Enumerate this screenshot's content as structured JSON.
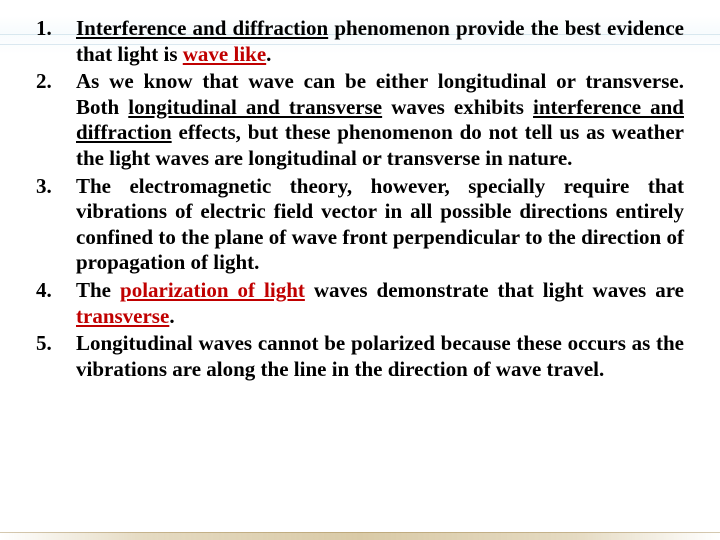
{
  "slide": {
    "background_color": "#ffffff",
    "font_family": "Georgia, Times New Roman, serif",
    "font_size_pt": 16,
    "line_height": 1.22,
    "text_color": "#000000",
    "highlight_color": "#c00000",
    "text_align": "justify",
    "list_number_weight": "bold",
    "bottom_accent_color": "#b49650",
    "items": [
      {
        "segments": [
          {
            "text": "Interference and diffraction",
            "underline": true
          },
          {
            "text": " phenomenon provide the best evidence that light is "
          },
          {
            "text": "wave like",
            "underline": true,
            "color": "#c00000"
          },
          {
            "text": "."
          }
        ]
      },
      {
        "segments": [
          {
            "text": "As we know that wave can be either longitudinal or transverse. Both "
          },
          {
            "text": "longitudinal and transverse",
            "underline": true
          },
          {
            "text": " waves exhibits "
          },
          {
            "text": "interference and diffraction",
            "underline": true
          },
          {
            "text": " effects, but these phenomenon do not tell us as weather the light waves are longitudinal or transverse in nature."
          }
        ]
      },
      {
        "segments": [
          {
            "text": "The electromagnetic theory, however, specially require that vibrations of electric field vector in all possible directions entirely confined to the plane of wave front perpendicular to the direction of propagation of light."
          }
        ]
      },
      {
        "segments": [
          {
            "text": "The "
          },
          {
            "text": "polarization of light",
            "underline": true,
            "color": "#c00000"
          },
          {
            "text": " waves demonstrate that light waves are "
          },
          {
            "text": "transverse",
            "underline": true,
            "color": "#c00000"
          },
          {
            "text": "."
          }
        ]
      },
      {
        "segments": [
          {
            "text": "Longitudinal waves cannot be polarized because these occurs as the vibrations are along the line in the direction of wave travel."
          }
        ]
      }
    ]
  }
}
